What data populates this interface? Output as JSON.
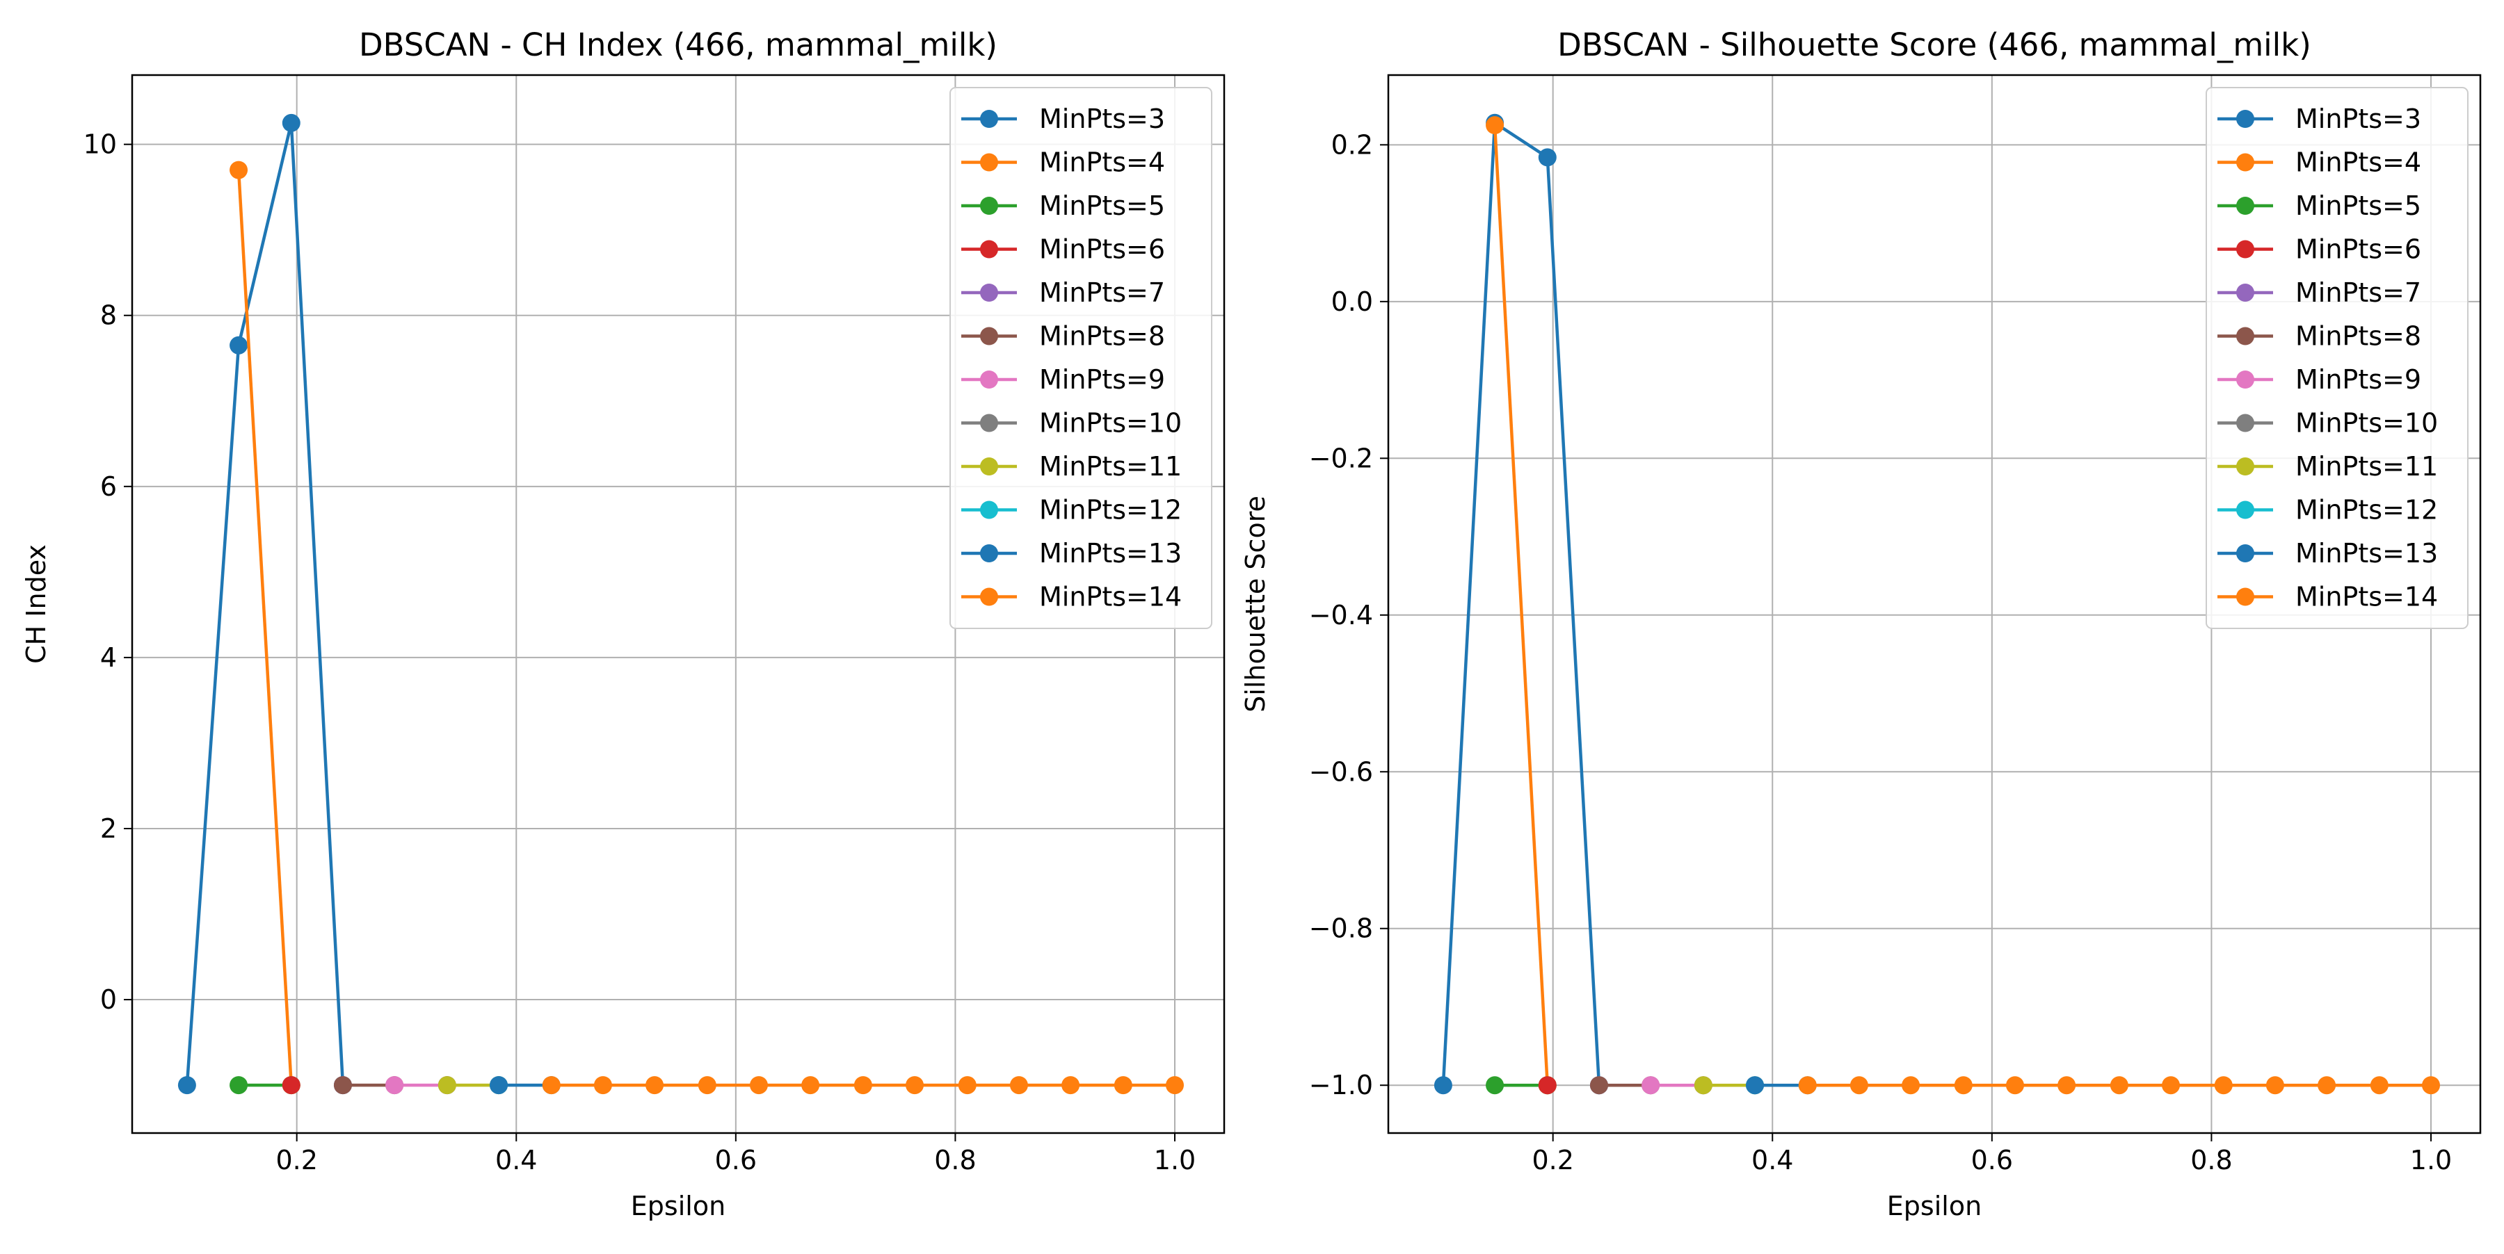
{
  "chart_data": [
    {
      "type": "line",
      "title": "DBSCAN - CH Index (466, mammal_milk)",
      "xlabel": "Epsilon",
      "ylabel": "CH Index",
      "xlim": [
        0.05,
        1.045
      ],
      "ylim": [
        -1.56,
        10.81
      ],
      "xticks": [
        0.2,
        0.4,
        0.6,
        0.8,
        1.0
      ],
      "xtick_labels": [
        "0.2",
        "0.4",
        "0.6",
        "0.8",
        "1.0"
      ],
      "yticks": [
        0,
        2,
        4,
        6,
        8,
        10
      ],
      "ytick_labels": [
        "0",
        "2",
        "4",
        "6",
        "8",
        "10"
      ],
      "grid": true,
      "legend_loc": "upper right",
      "series": [
        {
          "name": "MinPts=3",
          "color": "#1f77b4",
          "x": [
            0.1,
            0.147,
            0.195,
            0.242
          ],
          "y": [
            -1,
            7.65,
            10.25,
            -1
          ]
        },
        {
          "name": "MinPts=4",
          "color": "#ff7f0e",
          "x": [
            0.147,
            0.195
          ],
          "y": [
            9.7,
            -1
          ]
        },
        {
          "name": "MinPts=5",
          "color": "#2ca02c",
          "x": [
            0.147,
            0.195
          ],
          "y": [
            -1,
            -1
          ]
        },
        {
          "name": "MinPts=6",
          "color": "#d62728",
          "x": [
            0.195
          ],
          "y": [
            -1
          ]
        },
        {
          "name": "MinPts=7",
          "color": "#9467bd",
          "x": [
            0.242
          ],
          "y": [
            -1
          ]
        },
        {
          "name": "MinPts=8",
          "color": "#8c564b",
          "x": [
            0.242,
            0.289
          ],
          "y": [
            -1,
            -1
          ]
        },
        {
          "name": "MinPts=9",
          "color": "#e377c2",
          "x": [
            0.289,
            0.337
          ],
          "y": [
            -1,
            -1
          ]
        },
        {
          "name": "MinPts=10",
          "color": "#7f7f7f",
          "x": [
            0.337
          ],
          "y": [
            -1
          ]
        },
        {
          "name": "MinPts=11",
          "color": "#bcbd22",
          "x": [
            0.337,
            0.384
          ],
          "y": [
            -1,
            -1
          ]
        },
        {
          "name": "MinPts=12",
          "color": "#17becf",
          "x": [
            0.384
          ],
          "y": [
            -1
          ]
        },
        {
          "name": "MinPts=13",
          "color": "#1f77b4",
          "x": [
            0.384,
            0.432
          ],
          "y": [
            -1,
            -1
          ]
        },
        {
          "name": "MinPts=14",
          "color": "#ff7f0e",
          "x": [
            0.432,
            0.479,
            0.526,
            0.574,
            0.621,
            0.668,
            0.716,
            0.763,
            0.811,
            0.858,
            0.905,
            0.953,
            1.0
          ],
          "y": [
            -1,
            -1,
            -1,
            -1,
            -1,
            -1,
            -1,
            -1,
            -1,
            -1,
            -1,
            -1,
            -1
          ]
        }
      ]
    },
    {
      "type": "line",
      "title": "DBSCAN - Silhouette Score (466, mammal_milk)",
      "xlabel": "Epsilon",
      "ylabel": "Silhouette Score",
      "xlim": [
        0.05,
        1.045
      ],
      "ylim": [
        -1.061,
        0.289
      ],
      "xticks": [
        0.2,
        0.4,
        0.6,
        0.8,
        1.0
      ],
      "xtick_labels": [
        "0.2",
        "0.4",
        "0.6",
        "0.8",
        "1.0"
      ],
      "yticks": [
        0.2,
        0.0,
        -0.2,
        -0.4,
        -0.6,
        -0.8,
        -1.0
      ],
      "ytick_labels": [
        "0.2",
        "0.0",
        "−0.2",
        "−0.4",
        "−0.6",
        "−0.8",
        "−1.0"
      ],
      "grid": true,
      "legend_loc": "upper right",
      "series": [
        {
          "name": "MinPts=3",
          "color": "#1f77b4",
          "x": [
            0.1,
            0.147,
            0.195,
            0.242
          ],
          "y": [
            -1,
            0.228,
            0.184,
            -1
          ]
        },
        {
          "name": "MinPts=4",
          "color": "#ff7f0e",
          "x": [
            0.147,
            0.195
          ],
          "y": [
            0.225,
            -1
          ]
        },
        {
          "name": "MinPts=5",
          "color": "#2ca02c",
          "x": [
            0.147,
            0.195
          ],
          "y": [
            -1,
            -1
          ]
        },
        {
          "name": "MinPts=6",
          "color": "#d62728",
          "x": [
            0.195
          ],
          "y": [
            -1
          ]
        },
        {
          "name": "MinPts=7",
          "color": "#9467bd",
          "x": [
            0.242
          ],
          "y": [
            -1
          ]
        },
        {
          "name": "MinPts=8",
          "color": "#8c564b",
          "x": [
            0.242,
            0.289
          ],
          "y": [
            -1,
            -1
          ]
        },
        {
          "name": "MinPts=9",
          "color": "#e377c2",
          "x": [
            0.289,
            0.337
          ],
          "y": [
            -1,
            -1
          ]
        },
        {
          "name": "MinPts=10",
          "color": "#7f7f7f",
          "x": [
            0.337
          ],
          "y": [
            -1
          ]
        },
        {
          "name": "MinPts=11",
          "color": "#bcbd22",
          "x": [
            0.337,
            0.384
          ],
          "y": [
            -1,
            -1
          ]
        },
        {
          "name": "MinPts=12",
          "color": "#17becf",
          "x": [
            0.384
          ],
          "y": [
            -1
          ]
        },
        {
          "name": "MinPts=13",
          "color": "#1f77b4",
          "x": [
            0.384,
            0.432
          ],
          "y": [
            -1,
            -1
          ]
        },
        {
          "name": "MinPts=14",
          "color": "#ff7f0e",
          "x": [
            0.432,
            0.479,
            0.526,
            0.574,
            0.621,
            0.668,
            0.716,
            0.763,
            0.811,
            0.858,
            0.905,
            0.953,
            1.0
          ],
          "y": [
            -1,
            -1,
            -1,
            -1,
            -1,
            -1,
            -1,
            -1,
            -1,
            -1,
            -1,
            -1,
            -1
          ]
        }
      ]
    }
  ]
}
